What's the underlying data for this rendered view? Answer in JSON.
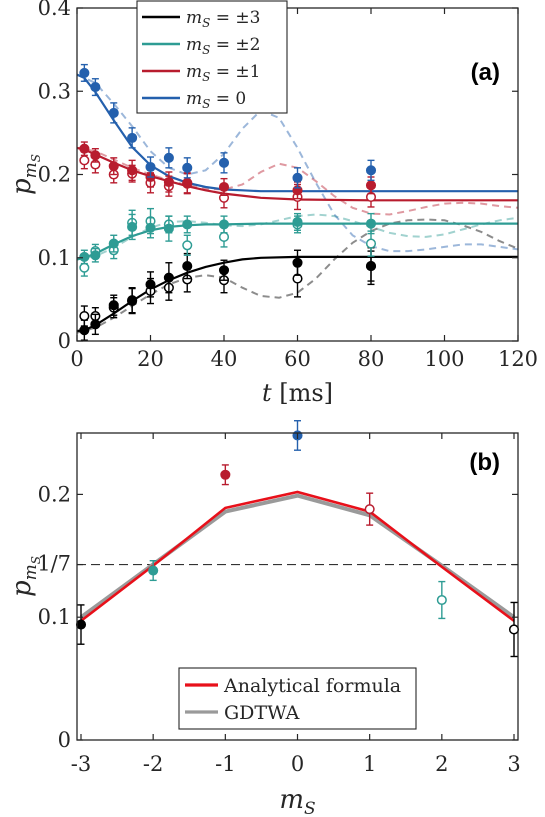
{
  "colors": {
    "ms3": "#000000",
    "ms2": "#2e9c94",
    "ms1": "#b81c2e",
    "ms0": "#2460ad",
    "analytic": "#e8101a",
    "gdtwa": "#9a9a9a",
    "dashed_ref": "#555555"
  },
  "chart_data": [
    {
      "panel": "a",
      "type": "scatter",
      "panel_label": "(a)",
      "xlabel": "t [ms]",
      "xlabel_var": "t",
      "xlabel_unit": "[ms]",
      "ylabel": "p_{m_S}",
      "ylabel_main": "p",
      "ylabel_sub": "m",
      "ylabel_subsub": "S",
      "xlim": [
        0,
        120
      ],
      "ylim": [
        0,
        0.4
      ],
      "xticks": [
        "0",
        "20",
        "40",
        "60",
        "80",
        "100",
        "120"
      ],
      "yticks": [
        "0",
        "0.1",
        "0.2",
        "0.3",
        "0.4"
      ],
      "legend_position": "top-left",
      "legend": [
        {
          "label": "m_S = ±3",
          "left": "m",
          "sub": "S",
          "right": "= ±3",
          "color_key": "ms3"
        },
        {
          "label": "m_S = ±2",
          "left": "m",
          "sub": "S",
          "right": "= ±2",
          "color_key": "ms2"
        },
        {
          "label": "m_S = ±1",
          "left": "m",
          "sub": "S",
          "right": "= ±1",
          "color_key": "ms1"
        },
        {
          "label": "m_S = 0",
          "left": "m",
          "sub": "S",
          "right": "= 0",
          "color_key": "ms0"
        }
      ],
      "series": [
        {
          "name": "m_S = ±3",
          "color_key": "ms3",
          "filled": {
            "x": [
              2,
              5,
              10,
              15,
              20,
              25,
              30,
              40,
              60,
              80
            ],
            "y": [
              0.013,
              0.02,
              0.043,
              0.049,
              0.068,
              0.076,
              0.09,
              0.085,
              0.094,
              0.09
            ],
            "err": [
              0.012,
              0.012,
              0.012,
              0.015,
              0.015,
              0.018,
              0.015,
              0.012,
              0.015,
              0.018
            ]
          },
          "open": {
            "x": [
              2,
              5,
              10,
              15,
              20,
              25,
              30,
              40,
              60,
              80
            ],
            "y": [
              0.03,
              0.03,
              0.04,
              0.048,
              0.06,
              0.064,
              0.074,
              0.073,
              0.075,
              0.09
            ],
            "err": [
              0.012,
              0.01,
              0.012,
              0.015,
              0.015,
              0.015,
              0.015,
              0.015,
              0.022,
              0.022
            ]
          },
          "fit": {
            "x": [
              0,
              2,
              5,
              10,
              15,
              20,
              25,
              30,
              35,
              40,
              45,
              50,
              60,
              70,
              80,
              100,
              120
            ],
            "y": [
              0.012,
              0.013,
              0.019,
              0.033,
              0.048,
              0.062,
              0.073,
              0.082,
              0.089,
              0.094,
              0.098,
              0.1,
              0.101,
              0.101,
              0.101,
              0.101,
              0.101
            ]
          },
          "dashed": {
            "x": [
              0,
              5,
              10,
              15,
              20,
              25,
              30,
              35,
              40,
              45,
              50,
              55,
              60,
              65,
              70,
              75,
              80,
              85,
              90,
              95,
              100,
              105,
              110,
              115,
              120
            ],
            "y": [
              0.01,
              0.016,
              0.028,
              0.042,
              0.056,
              0.068,
              0.076,
              0.079,
              0.076,
              0.064,
              0.054,
              0.052,
              0.058,
              0.075,
              0.098,
              0.118,
              0.132,
              0.141,
              0.145,
              0.146,
              0.145,
              0.139,
              0.131,
              0.12,
              0.111
            ]
          }
        },
        {
          "name": "m_S = ±2",
          "color_key": "ms2",
          "filled": {
            "x": [
              2,
              5,
              10,
              15,
              20,
              25,
              30,
              40,
              60,
              80
            ],
            "y": [
              0.101,
              0.103,
              0.117,
              0.137,
              0.136,
              0.135,
              0.14,
              0.14,
              0.143,
              0.141
            ],
            "err": [
              0.008,
              0.008,
              0.01,
              0.015,
              0.012,
              0.015,
              0.01,
              0.01,
              0.01,
              0.012
            ]
          },
          "open": {
            "x": [
              2,
              5,
              10,
              15,
              20,
              25,
              30,
              40,
              60,
              80
            ],
            "y": [
              0.088,
              0.108,
              0.109,
              0.142,
              0.144,
              0.14,
              0.115,
              0.125,
              0.14,
              0.117
            ],
            "err": [
              0.01,
              0.008,
              0.01,
              0.015,
              0.015,
              0.01,
              0.012,
              0.012,
              0.01,
              0.015
            ]
          },
          "fit": {
            "x": [
              0,
              2,
              5,
              10,
              15,
              20,
              25,
              30,
              35,
              40,
              50,
              60,
              80,
              100,
              120
            ],
            "y": [
              0.098,
              0.1,
              0.105,
              0.116,
              0.126,
              0.133,
              0.137,
              0.139,
              0.14,
              0.14,
              0.141,
              0.141,
              0.141,
              0.141,
              0.141
            ]
          },
          "dashed": {
            "x": [
              0,
              5,
              10,
              15,
              20,
              25,
              30,
              35,
              40,
              45,
              50,
              55,
              60,
              65,
              70,
              75,
              80,
              85,
              90,
              95,
              100,
              105,
              110,
              115,
              120
            ],
            "y": [
              0.098,
              0.102,
              0.112,
              0.125,
              0.136,
              0.143,
              0.144,
              0.142,
              0.139,
              0.138,
              0.14,
              0.145,
              0.15,
              0.152,
              0.15,
              0.144,
              0.137,
              0.13,
              0.126,
              0.125,
              0.128,
              0.134,
              0.14,
              0.145,
              0.148
            ]
          }
        },
        {
          "name": "m_S = ±1",
          "color_key": "ms1",
          "filled": {
            "x": [
              2,
              5,
              10,
              15,
              20,
              25,
              30,
              40,
              60,
              80
            ],
            "y": [
              0.231,
              0.223,
              0.21,
              0.205,
              0.197,
              0.191,
              0.19,
              0.185,
              0.181,
              0.187
            ],
            "err": [
              0.008,
              0.008,
              0.01,
              0.012,
              0.012,
              0.012,
              0.012,
              0.01,
              0.01,
              0.01
            ]
          },
          "open": {
            "x": [
              2,
              5,
              10,
              15,
              20,
              25,
              30,
              40,
              60,
              80
            ],
            "y": [
              0.217,
              0.212,
              0.2,
              0.201,
              0.19,
              0.186,
              0.189,
              0.172,
              0.173,
              0.173
            ],
            "err": [
              0.01,
              0.01,
              0.01,
              0.01,
              0.012,
              0.012,
              0.012,
              0.012,
              0.015,
              0.012
            ]
          },
          "fit": {
            "x": [
              0,
              2,
              5,
              10,
              15,
              20,
              25,
              30,
              35,
              40,
              50,
              60,
              80,
              100,
              120
            ],
            "y": [
              0.232,
              0.23,
              0.224,
              0.214,
              0.205,
              0.198,
              0.192,
              0.186,
              0.181,
              0.177,
              0.172,
              0.17,
              0.169,
              0.169,
              0.169
            ]
          },
          "dashed": {
            "x": [
              0,
              5,
              10,
              15,
              20,
              25,
              30,
              35,
              40,
              45,
              50,
              55,
              60,
              65,
              70,
              75,
              80,
              85,
              90,
              95,
              100,
              105,
              110,
              115,
              120
            ],
            "y": [
              0.232,
              0.228,
              0.218,
              0.208,
              0.2,
              0.193,
              0.187,
              0.183,
              0.182,
              0.188,
              0.203,
              0.213,
              0.208,
              0.192,
              0.174,
              0.16,
              0.153,
              0.152,
              0.156,
              0.161,
              0.165,
              0.166,
              0.165,
              0.162,
              0.16
            ]
          }
        },
        {
          "name": "m_S = 0",
          "color_key": "ms0",
          "filled": {
            "x": [
              2,
              5,
              10,
              15,
              20,
              25,
              30,
              40,
              60,
              80
            ],
            "y": [
              0.322,
              0.305,
              0.274,
              0.244,
              0.209,
              0.22,
              0.208,
              0.214,
              0.196,
              0.205
            ],
            "err": [
              0.01,
              0.01,
              0.012,
              0.012,
              0.012,
              0.012,
              0.012,
              0.012,
              0.012,
              0.012
            ]
          },
          "open": null,
          "fit": {
            "x": [
              0,
              2,
              5,
              10,
              15,
              20,
              25,
              30,
              35,
              40,
              45,
              50,
              60,
              80,
              100,
              120
            ],
            "y": [
              0.32,
              0.316,
              0.299,
              0.265,
              0.233,
              0.211,
              0.198,
              0.19,
              0.185,
              0.182,
              0.181,
              0.18,
              0.18,
              0.18,
              0.18,
              0.18
            ]
          },
          "dashed": {
            "x": [
              0,
              5,
              10,
              15,
              20,
              25,
              30,
              35,
              40,
              45,
              50,
              55,
              60,
              65,
              70,
              75,
              80,
              85,
              90,
              95,
              100,
              105,
              110,
              115,
              120
            ],
            "y": [
              0.32,
              0.31,
              0.285,
              0.258,
              0.228,
              0.208,
              0.2,
              0.205,
              0.225,
              0.255,
              0.277,
              0.268,
              0.232,
              0.19,
              0.152,
              0.127,
              0.114,
              0.108,
              0.108,
              0.11,
              0.113,
              0.116,
              0.116,
              0.113,
              0.11
            ]
          }
        }
      ]
    },
    {
      "panel": "b",
      "type": "line",
      "panel_label": "(b)",
      "xlabel": "m_S",
      "xlabel_main": "m",
      "xlabel_sub": "S",
      "ylabel": "p_{m_S}",
      "ylabel_main": "p",
      "ylabel_sub": "m",
      "ylabel_subsub": "S",
      "xlim": [
        -3,
        3
      ],
      "ylim": [
        0,
        0.25
      ],
      "xticks": [
        "-3",
        "-2",
        "-1",
        "0",
        "1",
        "2",
        "3"
      ],
      "yticks": [
        "0",
        "0.1",
        "1/7",
        "0.2"
      ],
      "ytick_values": [
        0,
        0.1,
        0.142857,
        0.2
      ],
      "reference_line": {
        "label": "1/7",
        "y": 0.142857
      },
      "legend_position": "bottom-center",
      "legend": [
        {
          "label": "Analytical formula",
          "color_key": "analytic"
        },
        {
          "label": "GDTWA",
          "color_key": "gdtwa"
        }
      ],
      "series": [
        {
          "name": "Analytical formula",
          "color_key": "analytic",
          "x": [
            -3,
            -2,
            -1,
            0,
            1,
            2,
            3
          ],
          "y": [
            0.097,
            0.142,
            0.189,
            0.202,
            0.186,
            0.141,
            0.097
          ]
        },
        {
          "name": "GDTWA",
          "color_key": "gdtwa",
          "x": [
            -3,
            -2,
            -1,
            0,
            1,
            2,
            3
          ],
          "y": [
            0.1,
            0.143,
            0.186,
            0.199,
            0.183,
            0.142,
            0.1
          ]
        }
      ],
      "points": [
        {
          "x": -3,
          "y": 0.094,
          "err": 0.016,
          "color_key": "ms3",
          "filled": true
        },
        {
          "x": -2,
          "y": 0.138,
          "err": 0.008,
          "color_key": "ms2",
          "filled": true
        },
        {
          "x": -1,
          "y": 0.216,
          "err": 0.008,
          "color_key": "ms1",
          "filled": true
        },
        {
          "x": 0,
          "y": 0.248,
          "err": 0.012,
          "color_key": "ms0",
          "filled": true
        },
        {
          "x": 1,
          "y": 0.188,
          "err": 0.013,
          "color_key": "ms1",
          "filled": false
        },
        {
          "x": 2,
          "y": 0.114,
          "err": 0.015,
          "color_key": "ms2",
          "filled": false
        },
        {
          "x": 3,
          "y": 0.09,
          "err": 0.022,
          "color_key": "ms3",
          "filled": false
        }
      ]
    }
  ]
}
